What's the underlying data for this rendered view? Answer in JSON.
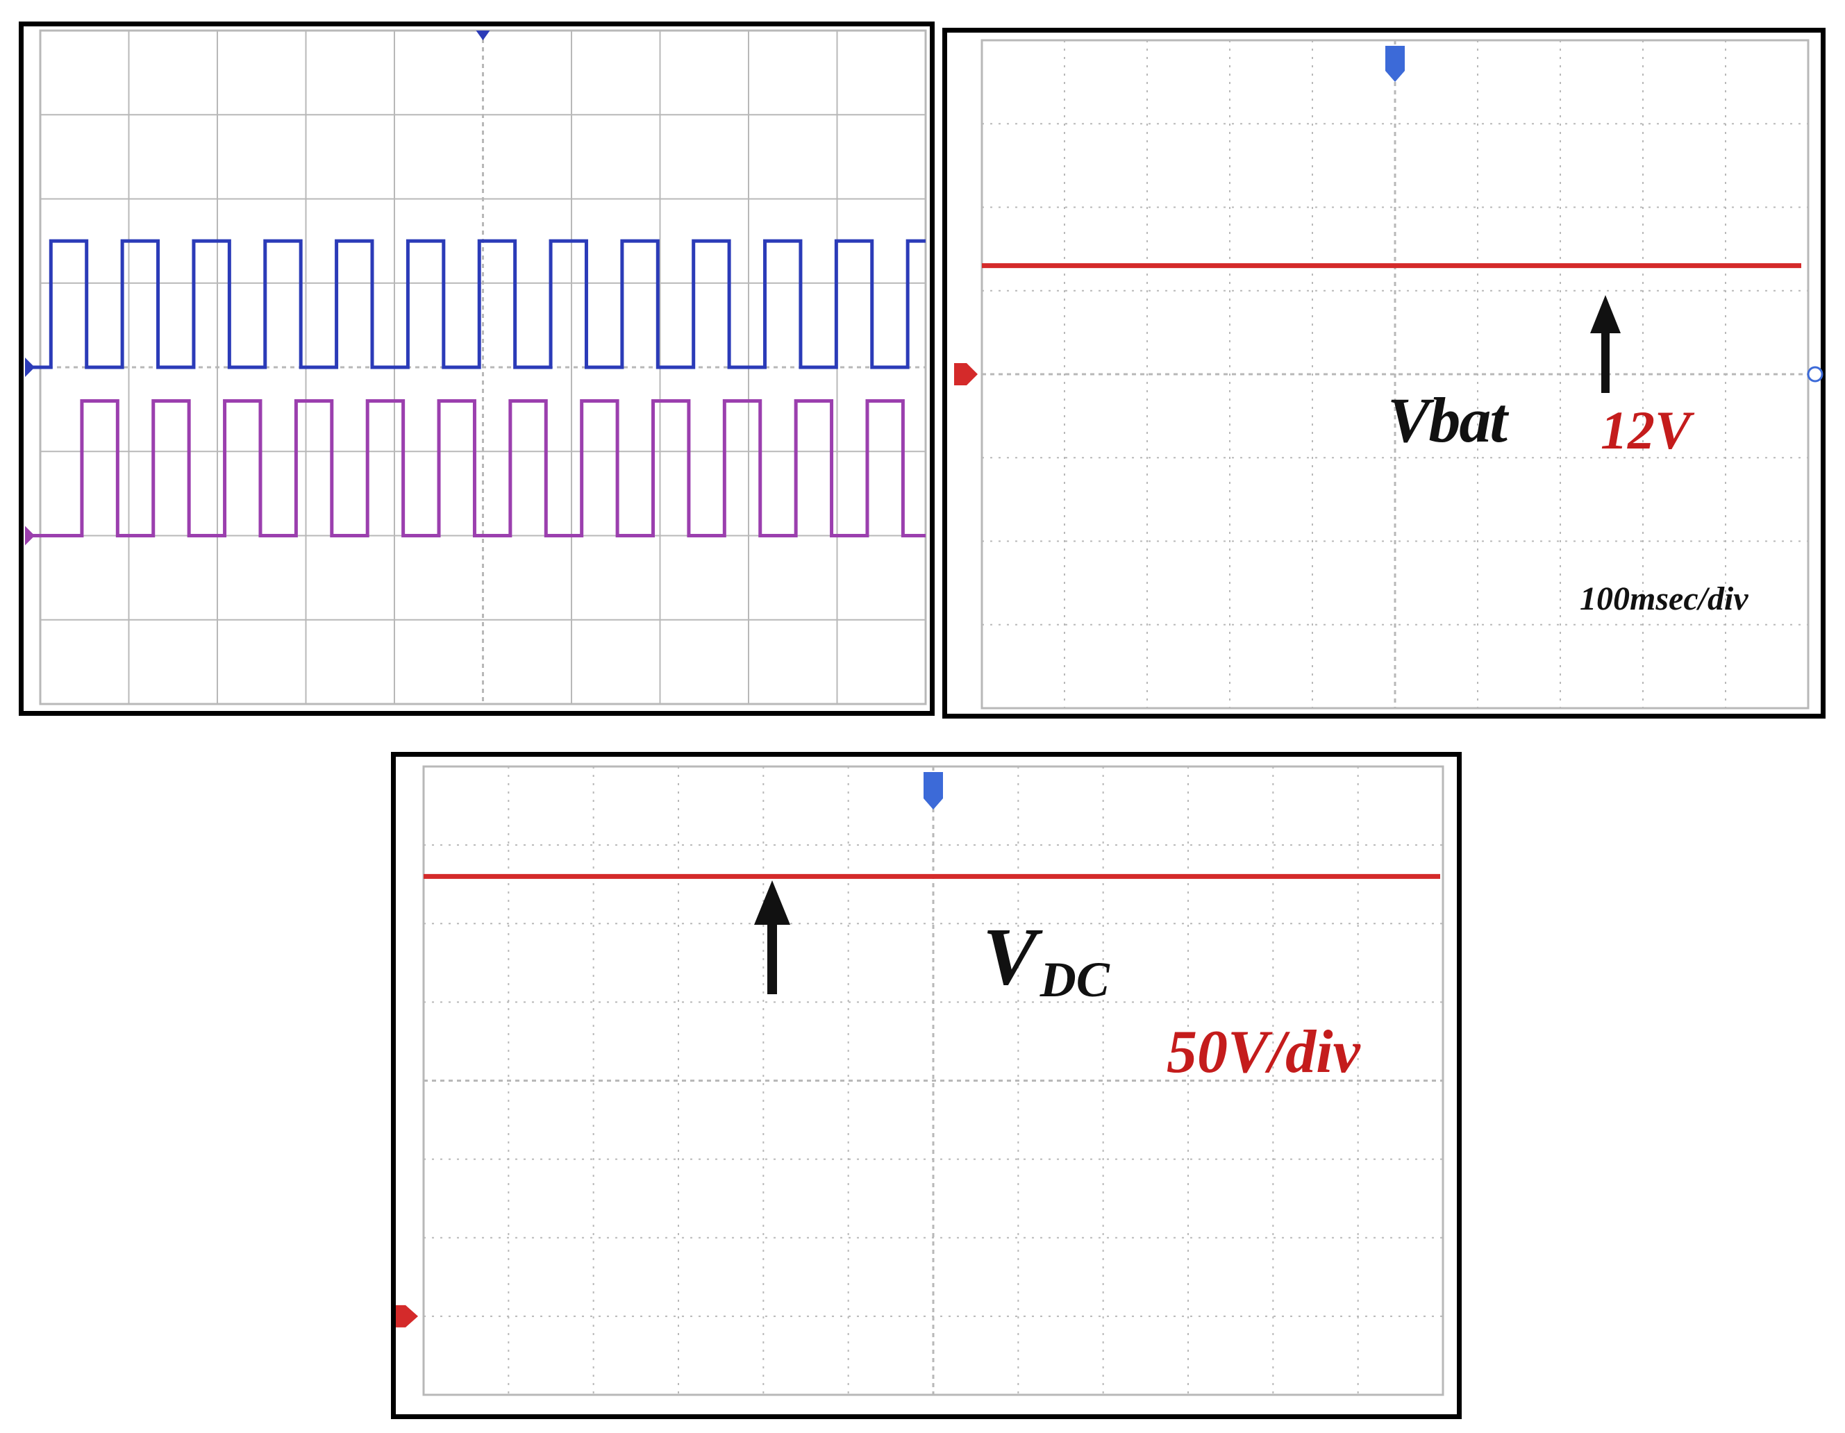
{
  "colors": {
    "pulse_1": "#2b3bb8",
    "pulse_2": "#9b3fae",
    "trace": "#d42a2a",
    "grid": "#b8b8b8",
    "label_red": "#c41c1c",
    "arrow": "#111111"
  },
  "chart_data": [
    {
      "type": "line",
      "title": "",
      "grid": true,
      "grid_divisions": [
        10,
        8
      ],
      "series": [
        {
          "color": "#2b3bb8",
          "waveform": "square",
          "cycles": 12.4,
          "duty": 0.5,
          "low_div": 4.0,
          "high_div": 5.5
        },
        {
          "color": "#9b3fae",
          "waveform": "square",
          "cycles": 12.4,
          "duty": 0.5,
          "low_div": 2.0,
          "high_div": 3.6
        }
      ]
    },
    {
      "type": "line",
      "title": "",
      "grid": true,
      "grid_divisions": [
        10,
        8
      ],
      "series": [
        {
          "name": "Vbat",
          "color": "#d42a2a",
          "level_div": 5.3
        }
      ],
      "ground_marker_div": 4.0,
      "annotations": {
        "signal": "Vbat",
        "value": "12V",
        "timebase": "100msec/div"
      }
    },
    {
      "type": "line",
      "title": "",
      "grid": true,
      "grid_divisions": [
        12,
        8
      ],
      "series": [
        {
          "name": "VDC",
          "color": "#d42a2a",
          "level_div": 6.6
        }
      ],
      "ground_marker_div": 1.0,
      "annotations": {
        "signal_main": "V",
        "signal_sub": "DC",
        "scale": "50V/div"
      }
    }
  ]
}
